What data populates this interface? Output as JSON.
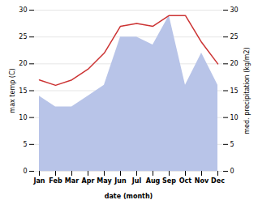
{
  "chart_data": {
    "type": "line",
    "xlabel": "date (month)",
    "ylabel": "max temp (C)",
    "y2label": "med. precipitation (kg/m2)",
    "categories": [
      "Jan",
      "Feb",
      "Mar",
      "Apr",
      "May",
      "Jun",
      "Jul",
      "Aug",
      "Sep",
      "Oct",
      "Nov",
      "Dec"
    ],
    "series": [
      {
        "type": "area",
        "color": "#b8c4e8",
        "values": [
          14,
          12,
          12,
          14,
          16,
          25,
          25,
          23.5,
          29,
          16,
          22,
          16
        ]
      },
      {
        "type": "line",
        "color": "#cc3333",
        "values": [
          17,
          16,
          17,
          19,
          22,
          27,
          27.5,
          27,
          29,
          29,
          24,
          20
        ]
      }
    ],
    "ylim": [
      0,
      30
    ],
    "yticks": [
      0,
      5,
      10,
      15,
      20,
      25,
      30
    ],
    "y2lim": [
      0,
      30
    ],
    "y2ticks": [
      0,
      5,
      10,
      15,
      20,
      25,
      30
    ],
    "grid": true
  }
}
